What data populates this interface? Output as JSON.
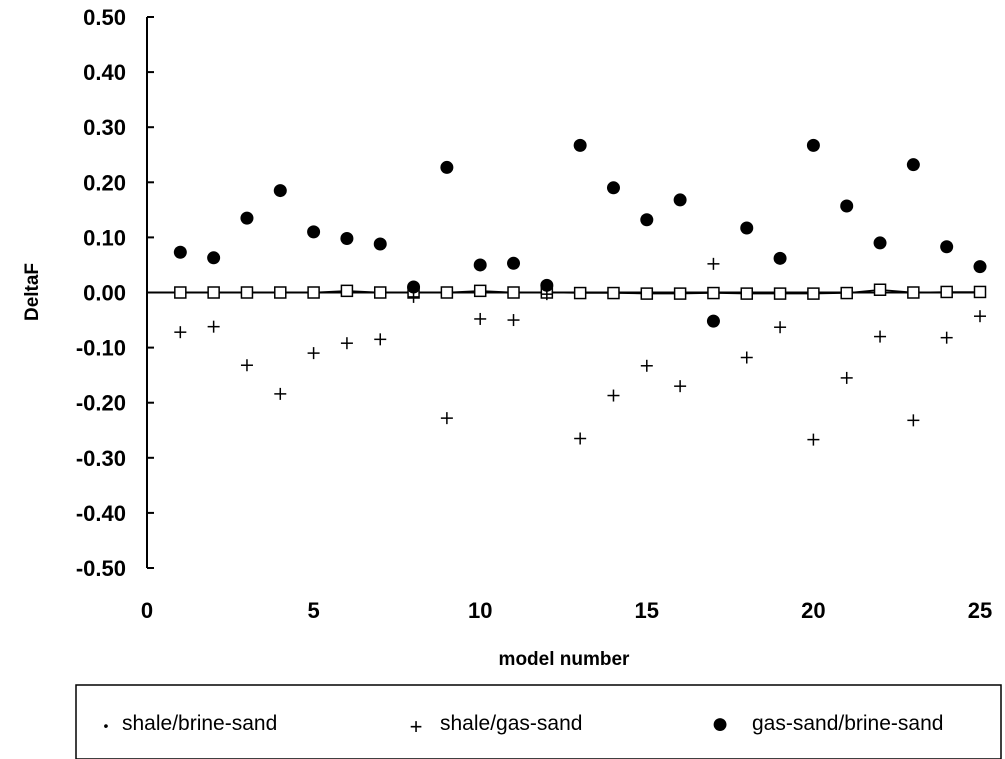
{
  "chart_data": {
    "type": "scatter",
    "title": "",
    "xlabel": "model number",
    "ylabel": "DeltaF",
    "xlim": [
      0,
      25
    ],
    "ylim": [
      -0.5,
      0.5
    ],
    "x_ticks": [
      "0",
      "5",
      "10",
      "15",
      "20",
      "25"
    ],
    "y_ticks": [
      "0.50",
      "0.40",
      "0.30",
      "0.20",
      "0.10",
      "0.00",
      "-0.10",
      "-0.20",
      "-0.30",
      "-0.40",
      "-0.50"
    ],
    "grid": false,
    "legend_position": "bottom",
    "x": [
      1,
      2,
      3,
      4,
      5,
      6,
      7,
      8,
      9,
      10,
      11,
      12,
      13,
      14,
      15,
      16,
      17,
      18,
      19,
      20,
      21,
      22,
      23,
      24,
      25
    ],
    "series": [
      {
        "name": "shale/brine-sand",
        "marker": "open-square-line",
        "values": [
          0.0,
          0.0,
          0.0,
          0.0,
          0.0,
          0.003,
          0.0,
          0.0,
          0.0,
          0.003,
          0.0,
          0.0,
          -0.001,
          -0.001,
          -0.002,
          -0.002,
          -0.001,
          -0.002,
          -0.002,
          -0.002,
          -0.001,
          0.005,
          0.0,
          0.001,
          0.001
        ]
      },
      {
        "name": "shale/gas-sand",
        "marker": "plus",
        "values": [
          -0.072,
          -0.062,
          -0.132,
          -0.184,
          -0.11,
          -0.092,
          -0.085,
          -0.008,
          -0.228,
          -0.048,
          -0.05,
          -0.003,
          -0.265,
          -0.187,
          -0.133,
          -0.17,
          0.052,
          -0.118,
          -0.063,
          -0.267,
          -0.155,
          -0.08,
          -0.232,
          -0.082,
          -0.043
        ]
      },
      {
        "name": "gas-sand/brine-sand",
        "marker": "filled-circle",
        "values": [
          0.073,
          0.063,
          0.135,
          0.185,
          0.11,
          0.098,
          0.088,
          0.01,
          0.227,
          0.05,
          0.053,
          0.013,
          0.267,
          0.19,
          0.132,
          0.168,
          -0.052,
          0.117,
          0.062,
          0.267,
          0.157,
          0.09,
          0.232,
          0.083,
          0.047
        ]
      }
    ],
    "legend": [
      {
        "label": "shale/brine-sand",
        "symbol": "•"
      },
      {
        "label": "shale/gas-sand",
        "symbol": "+"
      },
      {
        "label": "gas-sand/brine-sand",
        "symbol": "●"
      }
    ],
    "colors": {
      "marks": "#000000",
      "background": "#ffffff"
    }
  }
}
